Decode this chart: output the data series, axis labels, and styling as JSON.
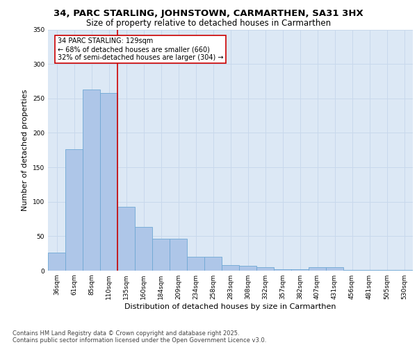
{
  "title_line1": "34, PARC STARLING, JOHNSTOWN, CARMARTHEN, SA31 3HX",
  "title_line2": "Size of property relative to detached houses in Carmarthen",
  "xlabel": "Distribution of detached houses by size in Carmarthen",
  "ylabel": "Number of detached properties",
  "categories": [
    "36sqm",
    "61sqm",
    "85sqm",
    "110sqm",
    "135sqm",
    "160sqm",
    "184sqm",
    "209sqm",
    "234sqm",
    "258sqm",
    "283sqm",
    "308sqm",
    "332sqm",
    "357sqm",
    "382sqm",
    "407sqm",
    "431sqm",
    "456sqm",
    "481sqm",
    "505sqm",
    "530sqm"
  ],
  "values": [
    26,
    176,
    263,
    258,
    93,
    63,
    46,
    46,
    20,
    20,
    8,
    7,
    5,
    2,
    2,
    5,
    5,
    1,
    1,
    1,
    1
  ],
  "bar_color": "#aec6e8",
  "bar_edge_color": "#6fa8d4",
  "vline_x": 3.5,
  "vline_color": "#cc0000",
  "annotation_text": "34 PARC STARLING: 129sqm\n← 68% of detached houses are smaller (660)\n32% of semi-detached houses are larger (304) →",
  "annotation_box_color": "#ffffff",
  "annotation_box_edge": "#cc0000",
  "ylim": [
    0,
    350
  ],
  "yticks": [
    0,
    50,
    100,
    150,
    200,
    250,
    300,
    350
  ],
  "grid_color": "#c8d8ec",
  "background_color": "#dce8f5",
  "footer_text": "Contains HM Land Registry data © Crown copyright and database right 2025.\nContains public sector information licensed under the Open Government Licence v3.0.",
  "title_fontsize": 9.5,
  "subtitle_fontsize": 8.5,
  "label_fontsize": 8,
  "tick_fontsize": 6.5,
  "annot_fontsize": 7,
  "footer_fontsize": 6
}
